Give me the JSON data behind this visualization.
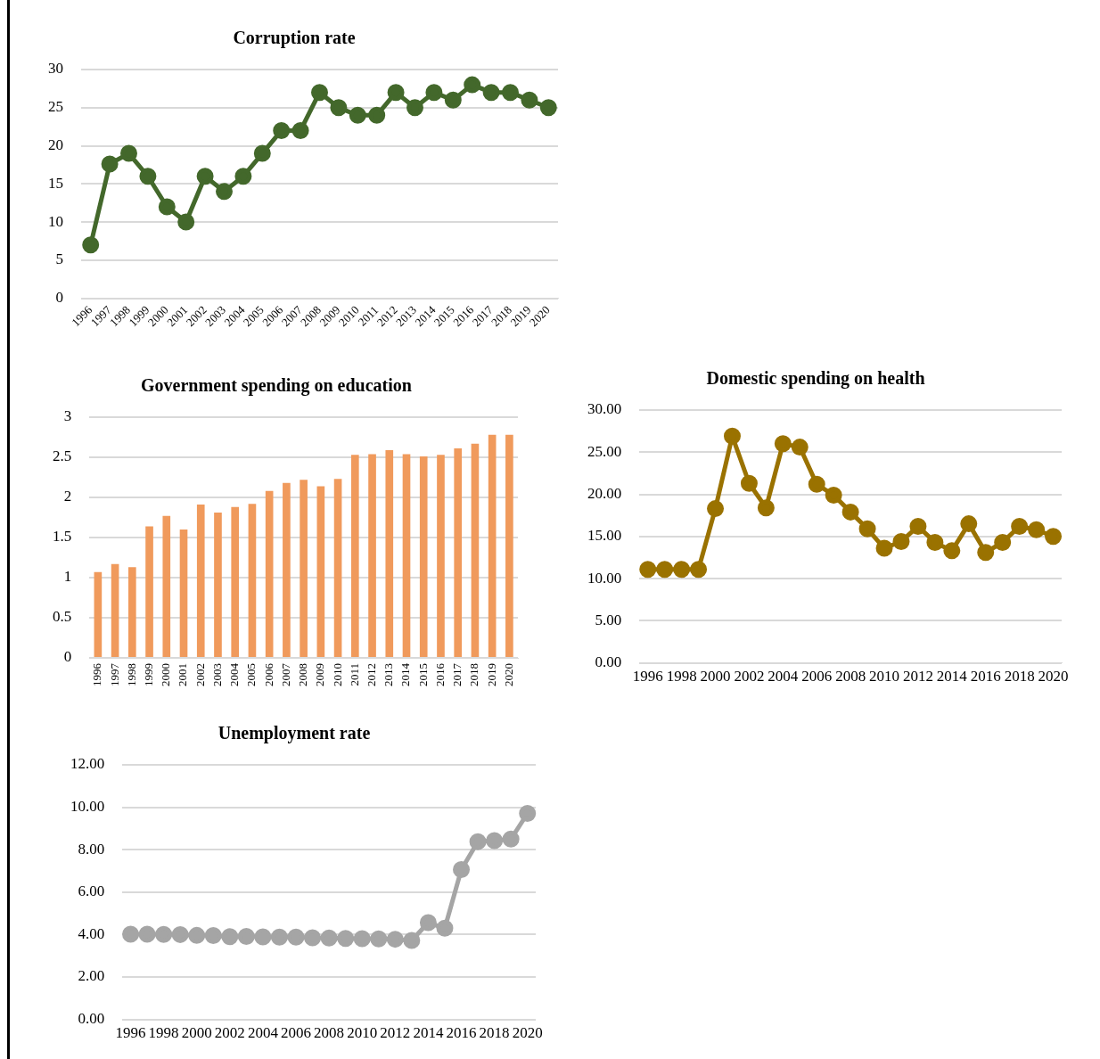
{
  "chart_data": [
    {
      "type": "line",
      "title": "Corruption rate",
      "categories": [
        "1996",
        "1997",
        "1998",
        "1999",
        "2000",
        "2001",
        "2002",
        "2003",
        "2004",
        "2005",
        "2006",
        "2007",
        "2008",
        "2009",
        "2010",
        "2011",
        "2012",
        "2013",
        "2014",
        "2015",
        "2016",
        "2017",
        "2018",
        "2019",
        "2020"
      ],
      "series": [
        {
          "color": "#43682b",
          "values": [
            7,
            17.6,
            19,
            16,
            12,
            10,
            16,
            14,
            16,
            19,
            22,
            22,
            27,
            25,
            24,
            24,
            27,
            25,
            27,
            26,
            28,
            27,
            27,
            26,
            25
          ]
        }
      ],
      "ylim": [
        0,
        30
      ],
      "yticks": [
        0,
        5,
        10,
        15,
        20,
        25,
        30
      ],
      "grid": "y",
      "marker": "circle",
      "line_style": "solid",
      "legend": false
    },
    {
      "type": "bar",
      "title": "Government spending on education",
      "categories": [
        "1996",
        "1997",
        "1998",
        "1999",
        "2000",
        "2001",
        "2002",
        "2003",
        "2004",
        "2005",
        "2006",
        "2007",
        "2008",
        "2009",
        "2010",
        "2011",
        "2012",
        "2013",
        "2014",
        "2015",
        "2016",
        "2017",
        "2018",
        "2019",
        "2020"
      ],
      "series": [
        {
          "color": "#f09a5c",
          "values": [
            1.07,
            1.17,
            1.13,
            1.64,
            1.77,
            1.6,
            1.91,
            1.81,
            1.88,
            1.92,
            2.08,
            2.18,
            2.22,
            2.14,
            2.23,
            2.53,
            2.54,
            2.59,
            2.54,
            2.51,
            2.53,
            2.61,
            2.67,
            2.78,
            2.78
          ]
        }
      ],
      "ylim": [
        0,
        3
      ],
      "yticks": [
        0,
        0.5,
        1,
        1.5,
        2,
        2.5,
        3
      ],
      "grid": "y",
      "legend": false
    },
    {
      "type": "line",
      "title": "Domestic spending on health",
      "categories": [
        "1996",
        null,
        "1998",
        null,
        "2000",
        null,
        "2002",
        null,
        "2004",
        null,
        "2006",
        null,
        "2008",
        null,
        "2010",
        null,
        "2012",
        null,
        "2014",
        null,
        "2016",
        null,
        "2018",
        null,
        "2020"
      ],
      "series": [
        {
          "color": "#9a7200",
          "values": [
            11.1,
            11.1,
            11.1,
            11.1,
            18.3,
            26.9,
            21.3,
            18.4,
            26,
            25.6,
            21.2,
            19.9,
            17.9,
            15.9,
            13.6,
            14.4,
            16.2,
            14.3,
            13.3,
            16.5,
            13.1,
            14.3,
            16.2,
            15.8,
            15
          ]
        }
      ],
      "ylim": [
        0,
        30
      ],
      "yticks": [
        {
          "value": 0,
          "label": "0.00"
        },
        {
          "value": 5,
          "label": "5.00"
        },
        {
          "value": 10,
          "label": "10.00"
        },
        {
          "value": 15,
          "label": "15.00"
        },
        {
          "value": 20,
          "label": "20.00"
        },
        {
          "value": 25,
          "label": "25.00"
        },
        {
          "value": 30,
          "label": "30.00"
        }
      ],
      "grid": "y",
      "marker": "circle",
      "line_style": "solid",
      "legend": false
    },
    {
      "type": "line",
      "title": "Unemployment rate",
      "categories": [
        "1996",
        null,
        "1998",
        null,
        "2000",
        null,
        "2002",
        null,
        "2004",
        null,
        "2006",
        null,
        "2008",
        null,
        "2010",
        null,
        "2012",
        null,
        "2014",
        null,
        "2016",
        null,
        "2018",
        null,
        "2020"
      ],
      "series": [
        {
          "color": "#a5a5a5",
          "values": [
            4.02,
            4.02,
            4.01,
            4,
            3.96,
            3.95,
            3.9,
            3.91,
            3.89,
            3.88,
            3.88,
            3.85,
            3.84,
            3.82,
            3.81,
            3.8,
            3.78,
            3.72,
            4.56,
            4.3,
            7.06,
            8.38,
            8.43,
            8.5,
            9.71
          ]
        }
      ],
      "ylim": [
        0,
        12
      ],
      "yticks": [
        {
          "value": 0,
          "label": "0.00"
        },
        {
          "value": 2,
          "label": "2.00"
        },
        {
          "value": 4,
          "label": "4.00"
        },
        {
          "value": 6,
          "label": "6.00"
        },
        {
          "value": 8,
          "label": "8.00"
        },
        {
          "value": 10,
          "label": "10.00"
        },
        {
          "value": 12,
          "label": "12.00"
        }
      ],
      "grid": "y",
      "marker": "circle",
      "line_style": "solid",
      "legend": false
    }
  ]
}
